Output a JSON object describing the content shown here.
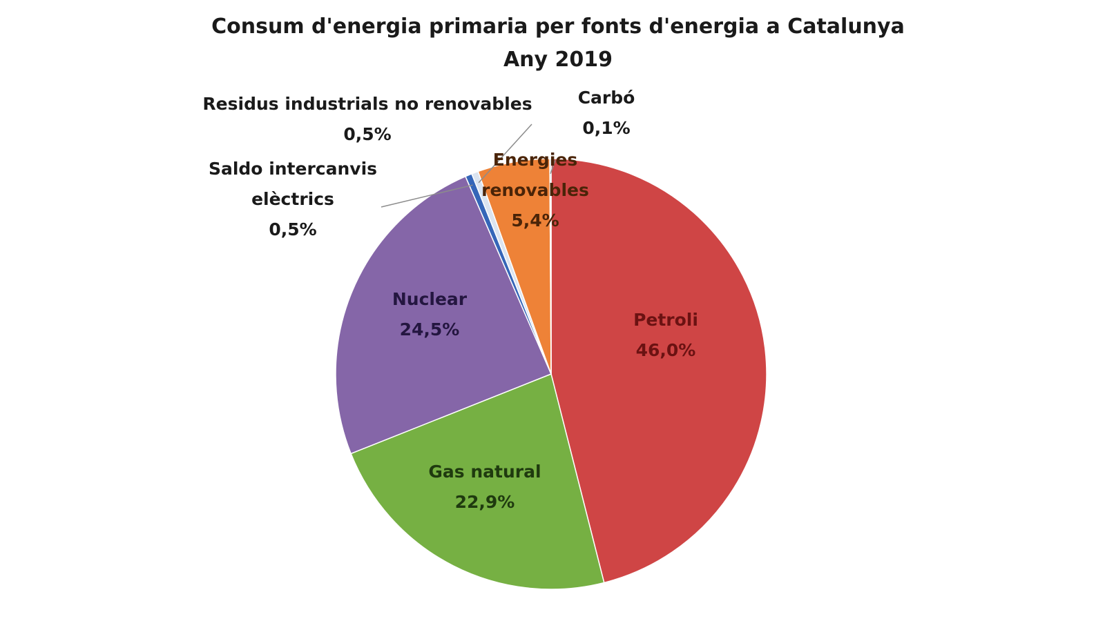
{
  "chart_data": {
    "type": "pie",
    "title": "Consum d'energia primaria per fonts d'energia a Catalunya",
    "subtitle": "Any 2019",
    "legend": "none",
    "slices": [
      {
        "name": "Petroli",
        "name_lines": [
          "Petroli"
        ],
        "value": 46.0,
        "value_label": "46,0%",
        "color": "#cf4545",
        "label_color": "#6b1212"
      },
      {
        "name": "Gas natural",
        "name_lines": [
          "Gas natural"
        ],
        "value": 22.9,
        "value_label": "22,9%",
        "color": "#76b043",
        "label_color": "#1f3a0f"
      },
      {
        "name": "Nuclear",
        "name_lines": [
          "Nuclear"
        ],
        "value": 24.5,
        "value_label": "24,5%",
        "color": "#8566a8",
        "label_color": "#241640"
      },
      {
        "name": "Saldo intercanvis elèctrics",
        "name_lines": [
          "Saldo intercanvis",
          "elèctrics"
        ],
        "value": 0.5,
        "value_label": "0,5%",
        "color": "#3566b8",
        "label_color": "#1a1a1a"
      },
      {
        "name": "Residus industrials no renovables",
        "name_lines": [
          "Residus industrials no renovables"
        ],
        "value": 0.5,
        "value_label": "0,5%",
        "color": "#dbe4f0",
        "label_color": "#1a1a1a"
      },
      {
        "name": "Energies renovables",
        "name_lines": [
          "Energies",
          "renovables"
        ],
        "value": 5.4,
        "value_label": "5,4%",
        "color": "#ee8237",
        "label_color": "#4a2408"
      },
      {
        "name": "Carbó",
        "name_lines": [
          "Carbó"
        ],
        "value": 0.1,
        "value_label": "0,1%",
        "color": "#9aa2ab",
        "label_color": "#1a1a1a"
      }
    ]
  }
}
